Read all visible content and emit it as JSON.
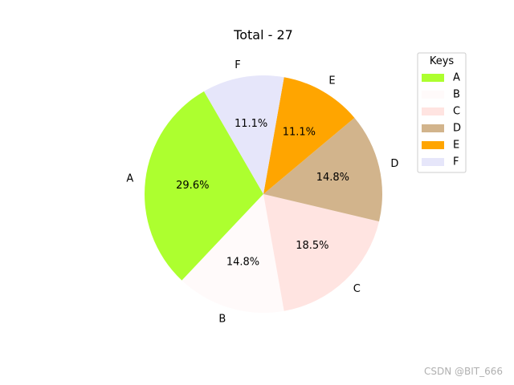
{
  "chart_data": {
    "type": "pie",
    "title": "Total - 27",
    "categories": [
      "A",
      "B",
      "C",
      "D",
      "E",
      "F"
    ],
    "values": [
      8,
      4,
      5,
      4,
      3,
      3
    ],
    "percent_labels": [
      "29.6%",
      "14.8%",
      "18.5%",
      "14.8%",
      "11.1%",
      "11.1%"
    ],
    "colors": [
      "#adff2f",
      "#fffafa",
      "#ffe4e1",
      "#d2b48c",
      "#ffa500",
      "#e6e6fa"
    ],
    "start_angle_deg": 120,
    "direction": "counterclockwise",
    "legend": {
      "title": "Keys",
      "placement": "top-right",
      "entries": [
        "A",
        "B",
        "C",
        "D",
        "E",
        "F"
      ]
    }
  },
  "watermark": "CSDN @BIT_666"
}
